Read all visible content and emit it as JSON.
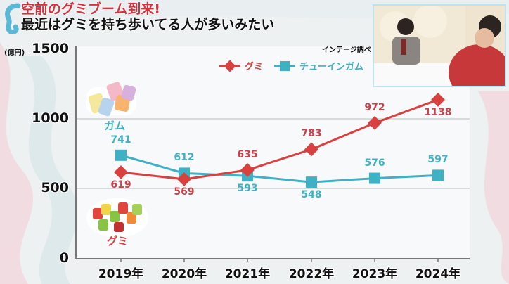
{
  "header": {
    "title_line1": "空前のグミブーム到来!",
    "title_line2": "最近はグミを持ち歩いてる人が多いみたい"
  },
  "source_note": "インテージ調べ",
  "images": {
    "gum_label": "ガム",
    "gummy_label": "グミ",
    "video_inset": "studio-inset-video"
  },
  "colors": {
    "gummy": "#d8413f",
    "chewing_gum": "#3fb1c4"
  },
  "chart_data": {
    "type": "line",
    "title": "空前のグミブーム到来!",
    "subtitle": "最近はグミを持ち歩いてる人が多いみたい",
    "xlabel": "",
    "ylabel": "(億円)",
    "unit_label": "(億円)",
    "x": [
      "2019年",
      "2020年",
      "2021年",
      "2022年",
      "2023年",
      "2024年"
    ],
    "series": [
      {
        "name": "グミ",
        "marker": "diamond",
        "color": "#d8413f",
        "values": [
          619,
          569,
          635,
          783,
          972,
          1138
        ]
      },
      {
        "name": "チューインガム",
        "marker": "square",
        "color": "#3fb1c4",
        "values": [
          741,
          612,
          593,
          548,
          576,
          597
        ]
      }
    ],
    "yticks": [
      "0",
      "500",
      "1000",
      "1500"
    ],
    "ylim": [
      0,
      1500
    ],
    "grid": true,
    "legend_position": "top-right",
    "annotation": "インテージ調べ"
  }
}
